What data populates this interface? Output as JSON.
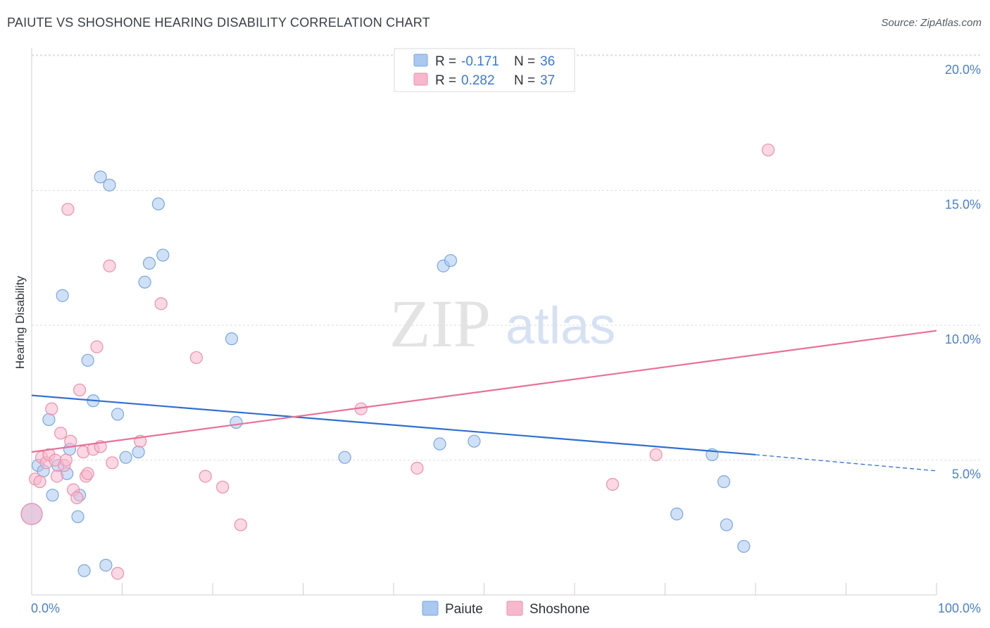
{
  "header": {
    "title": "PAIUTE VS SHOSHONE HEARING DISABILITY CORRELATION CHART",
    "source": "Source: ZipAtlas.com"
  },
  "watermark": {
    "zip": "ZIP",
    "atlas": "atlas"
  },
  "legend": {
    "rows": [
      {
        "r_label": "R =",
        "r_value": "-0.171",
        "n_label": "N =",
        "n_value": "36"
      },
      {
        "r_label": "R =",
        "r_value": "0.282",
        "n_label": "N =",
        "n_value": "37"
      }
    ]
  },
  "bottom_legend": [
    "Paiute",
    "Shoshone"
  ],
  "colors": {
    "paiute_fill": "#aac8f0",
    "paiute_stroke": "#7aa6e0",
    "paiute_line": "#2f6fd0",
    "shoshone_fill": "#f7b8cc",
    "shoshone_stroke": "#ec8fac",
    "shoshone_line": "#e8709a",
    "tick_label": "#4a7fcf"
  },
  "chart_data": {
    "type": "scatter",
    "title": "PAIUTE VS SHOSHONE HEARING DISABILITY CORRELATION CHART",
    "xlabel": "",
    "ylabel": "Hearing Disability",
    "xlim": [
      0,
      100
    ],
    "ylim": [
      0,
      20.5
    ],
    "x_tick_labels": [
      "0.0%",
      "100.0%"
    ],
    "y_ticks": [
      5,
      10,
      15,
      20
    ],
    "y_tick_labels": [
      "5.0%",
      "10.0%",
      "15.0%",
      "20.0%"
    ],
    "grid": true,
    "legend_position": "top-center",
    "series": [
      {
        "name": "Paiute",
        "r": -0.171,
        "n": 36,
        "trend": {
          "x": [
            0,
            80
          ],
          "y": [
            7.4,
            5.2
          ],
          "dashed_to": [
            100,
            4.6
          ]
        },
        "points": [
          [
            0.0,
            3.0
          ],
          [
            0.7,
            4.8
          ],
          [
            1.3,
            4.6
          ],
          [
            1.9,
            6.5
          ],
          [
            2.3,
            3.7
          ],
          [
            2.9,
            4.8
          ],
          [
            3.4,
            11.1
          ],
          [
            3.9,
            4.5
          ],
          [
            4.2,
            5.4
          ],
          [
            5.1,
            2.9
          ],
          [
            5.3,
            3.7
          ],
          [
            5.8,
            0.9
          ],
          [
            6.2,
            8.7
          ],
          [
            6.8,
            7.2
          ],
          [
            7.6,
            15.5
          ],
          [
            8.2,
            1.1
          ],
          [
            8.6,
            15.2
          ],
          [
            9.5,
            6.7
          ],
          [
            10.4,
            5.1
          ],
          [
            11.8,
            5.3
          ],
          [
            12.5,
            11.6
          ],
          [
            13.0,
            12.3
          ],
          [
            14.0,
            14.5
          ],
          [
            14.5,
            12.6
          ],
          [
            22.1,
            9.5
          ],
          [
            22.6,
            6.4
          ],
          [
            34.6,
            5.1
          ],
          [
            45.1,
            5.6
          ],
          [
            45.5,
            12.2
          ],
          [
            46.3,
            12.4
          ],
          [
            48.9,
            5.7
          ],
          [
            71.3,
            3.0
          ],
          [
            75.2,
            5.2
          ],
          [
            76.5,
            4.2
          ],
          [
            76.8,
            2.6
          ],
          [
            78.7,
            1.8
          ]
        ]
      },
      {
        "name": "Shoshone",
        "r": 0.282,
        "n": 37,
        "trend": {
          "x": [
            0,
            100
          ],
          "y": [
            5.3,
            9.8
          ]
        },
        "points": [
          [
            0.0,
            3.0
          ],
          [
            0.4,
            4.3
          ],
          [
            0.9,
            4.2
          ],
          [
            1.1,
            5.1
          ],
          [
            1.6,
            4.9
          ],
          [
            1.9,
            5.2
          ],
          [
            2.2,
            6.9
          ],
          [
            2.6,
            5.0
          ],
          [
            2.8,
            4.4
          ],
          [
            3.2,
            6.0
          ],
          [
            3.6,
            4.8
          ],
          [
            3.8,
            5.0
          ],
          [
            4.0,
            14.3
          ],
          [
            4.3,
            5.7
          ],
          [
            4.6,
            3.9
          ],
          [
            5.0,
            3.6
          ],
          [
            5.3,
            7.6
          ],
          [
            5.7,
            5.3
          ],
          [
            6.0,
            4.4
          ],
          [
            6.2,
            4.5
          ],
          [
            6.8,
            5.4
          ],
          [
            7.2,
            9.2
          ],
          [
            7.6,
            5.5
          ],
          [
            8.6,
            12.2
          ],
          [
            8.9,
            4.9
          ],
          [
            9.5,
            0.8
          ],
          [
            12.0,
            5.7
          ],
          [
            14.3,
            10.8
          ],
          [
            18.2,
            8.8
          ],
          [
            19.2,
            4.4
          ],
          [
            21.1,
            4.0
          ],
          [
            23.1,
            2.6
          ],
          [
            36.4,
            6.9
          ],
          [
            42.6,
            4.7
          ],
          [
            64.2,
            4.1
          ],
          [
            69.0,
            5.2
          ],
          [
            81.4,
            16.5
          ]
        ]
      }
    ]
  }
}
